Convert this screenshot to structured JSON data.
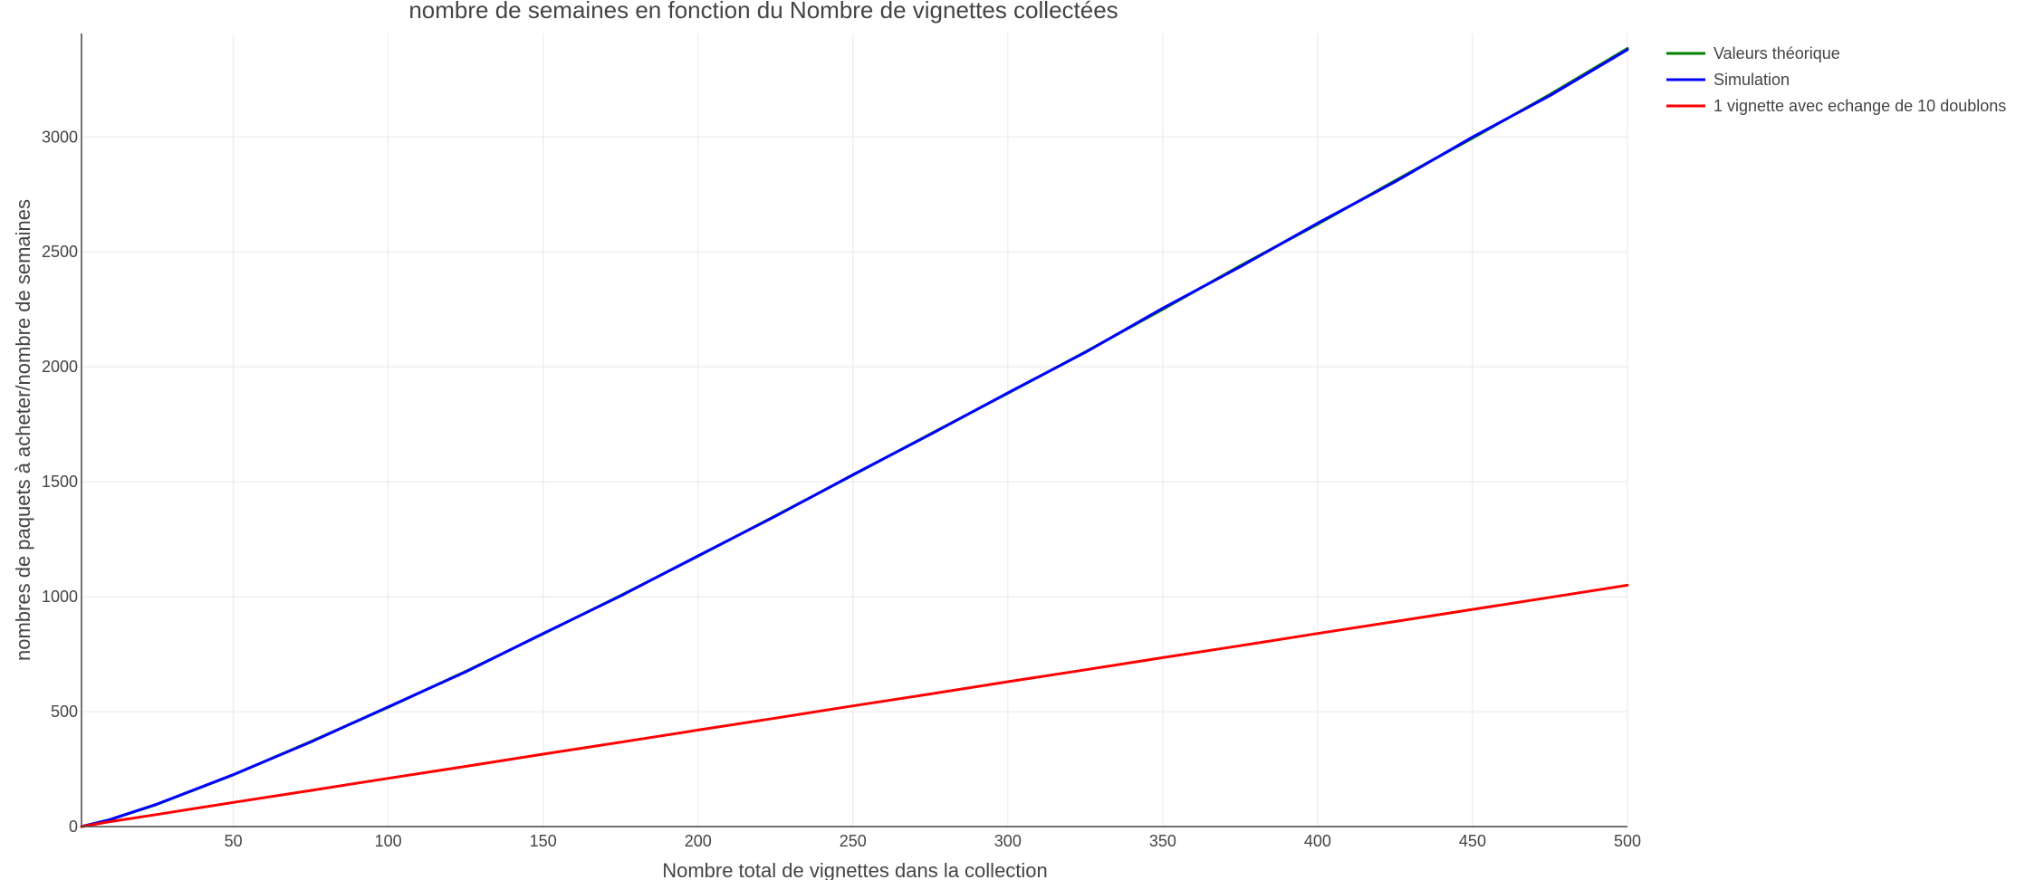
{
  "chart_data": {
    "type": "line",
    "title": "nombre de semaines en fonction du  Nombre de vignettes collectées",
    "xlabel": "Nombre total de vignettes dans la collection",
    "ylabel": "nombres de paquets à acheter/nombre de semaines",
    "xlim": [
      1,
      500
    ],
    "ylim": [
      0,
      3450
    ],
    "x_ticks": [
      50,
      100,
      150,
      200,
      250,
      300,
      350,
      400,
      450,
      500
    ],
    "x_tick_labels": [
      "50",
      "100",
      "150",
      "200",
      "250",
      "300",
      "350",
      "400",
      "450",
      "500"
    ],
    "y_ticks": [
      0,
      500,
      1000,
      1500,
      2000,
      2500,
      3000
    ],
    "y_tick_labels": [
      "0",
      "500",
      "1000",
      "1500",
      "2000",
      "2500",
      "3000"
    ],
    "grid": true,
    "legend_position": "top-right-outside",
    "x": [
      1,
      10,
      25,
      50,
      75,
      100,
      125,
      150,
      175,
      200,
      225,
      250,
      275,
      300,
      325,
      350,
      375,
      400,
      425,
      450,
      475,
      500
    ],
    "series": [
      {
        "name": "Valeurs théorique",
        "color": "#008000",
        "values": [
          0,
          29,
          95,
          225,
          370,
          519,
          675,
          838,
          1005,
          1176,
          1352,
          1529,
          1708,
          1885,
          2065,
          2250,
          2440,
          2620,
          2810,
          2995,
          3185,
          3385
        ]
      },
      {
        "name": "Simulation",
        "color": "#0000ff",
        "values": [
          0,
          30,
          96,
          226,
          368,
          521,
          673,
          840,
          1003,
          1178,
          1350,
          1531,
          1706,
          1887,
          2063,
          2255,
          2435,
          2625,
          2805,
          3000,
          3180,
          3380
        ]
      },
      {
        "name": "1 vignette avec echange de 10 doublons",
        "color": "#ff0000",
        "values": [
          0,
          21,
          52,
          105,
          157,
          210,
          262,
          315,
          367,
          420,
          472,
          525,
          577,
          630,
          682,
          735,
          787,
          840,
          892,
          945,
          997,
          1050
        ]
      }
    ]
  }
}
